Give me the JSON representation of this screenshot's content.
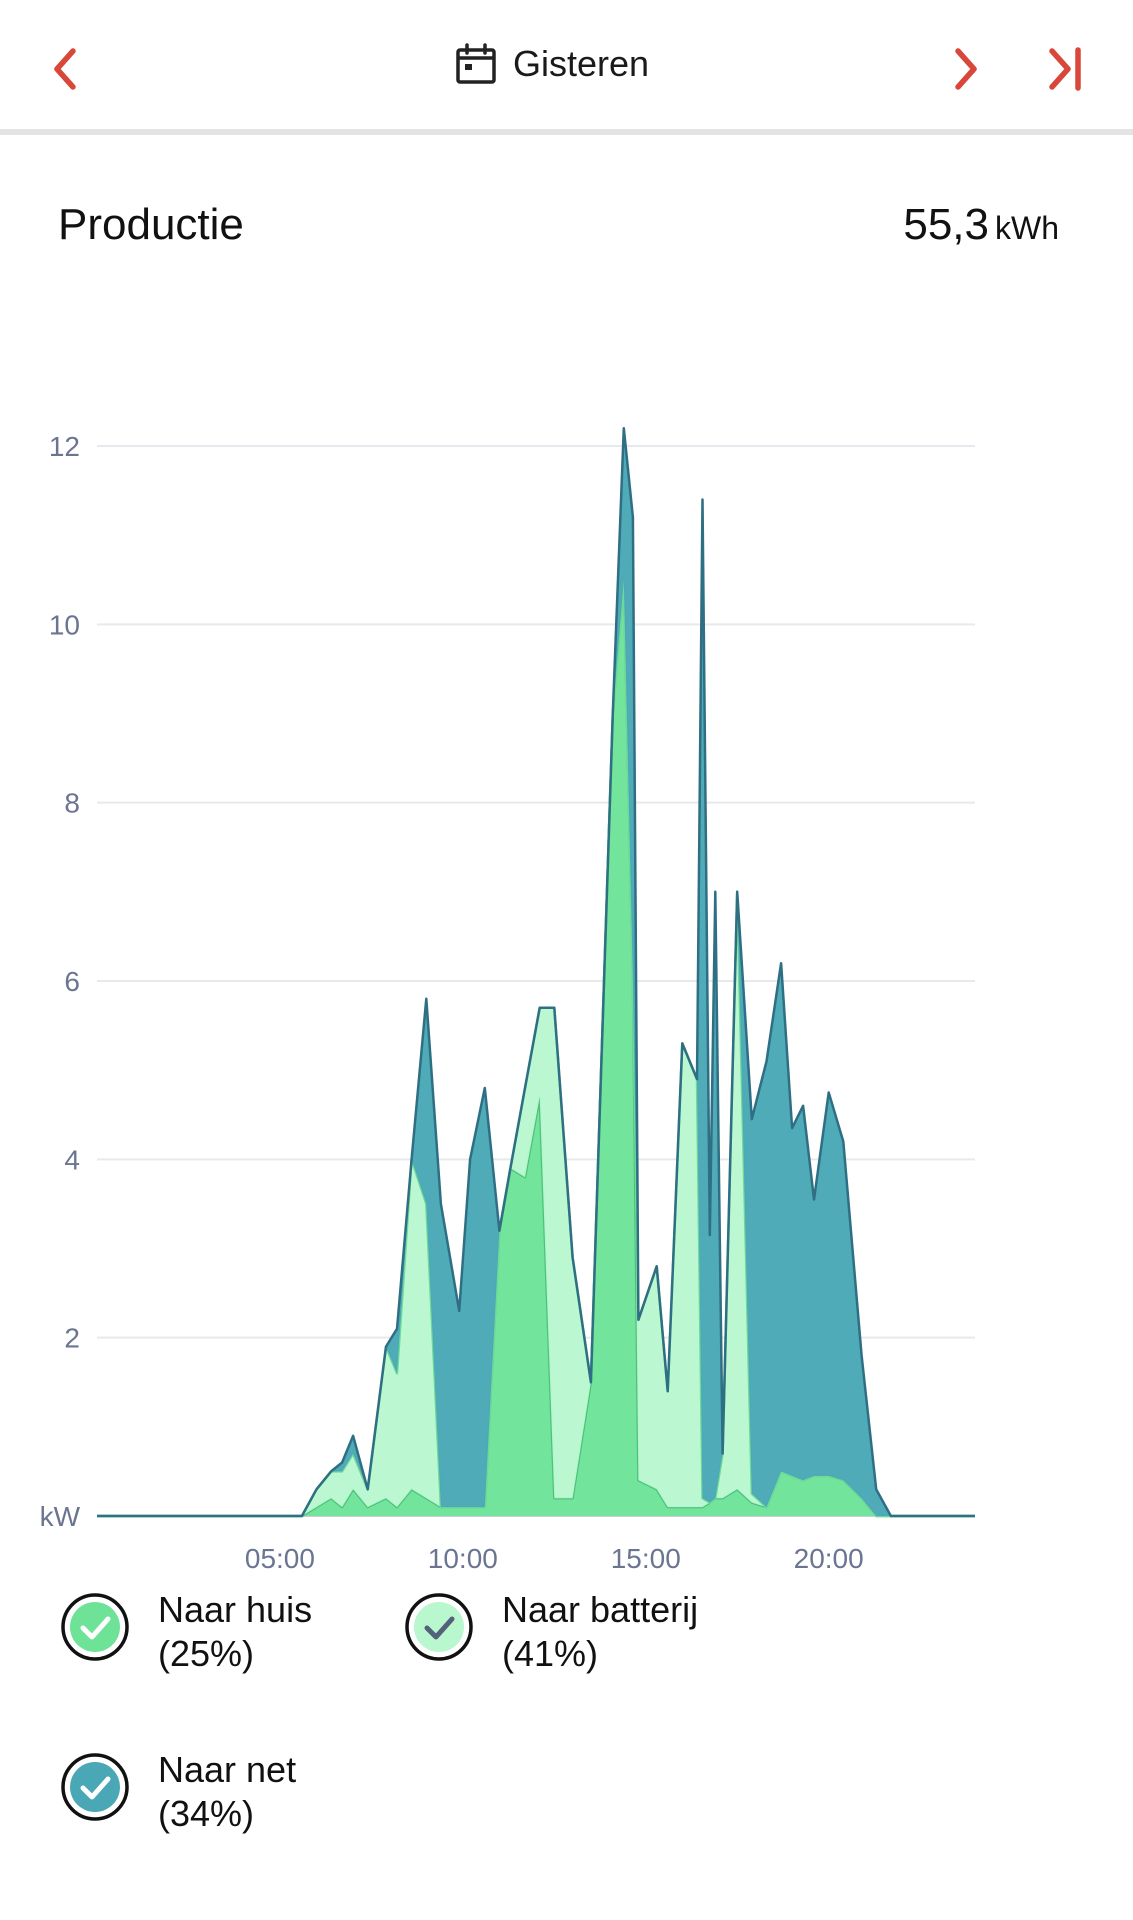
{
  "header": {
    "date_label": "Gisteren",
    "accent": "#d9473b"
  },
  "summary": {
    "title": "Productie",
    "total_value": "55,3",
    "total_unit": "kWh"
  },
  "legend": [
    {
      "label": "Naar huis",
      "pct": "(25%)",
      "color": "#6ee398",
      "checked": true
    },
    {
      "label": "Naar batterij",
      "pct": "(41%)",
      "color": "#b9f7cf",
      "checked": true
    },
    {
      "label": "Naar net",
      "pct": "(34%)",
      "color": "#4aa8b6",
      "checked": true
    }
  ],
  "chart_data": {
    "type": "area",
    "stacked": true,
    "ylabel": "kW",
    "ylim": [
      0,
      12
    ],
    "yticks": [
      2,
      4,
      6,
      8,
      10,
      12
    ],
    "xlim": [
      0,
      24
    ],
    "xticks": [
      5,
      10,
      15,
      20
    ],
    "xtick_labels": [
      "05:00",
      "10:00",
      "15:00",
      "20:00"
    ],
    "grid": true,
    "x": [
      0,
      5.6,
      6.0,
      6.4,
      6.7,
      7.0,
      7.4,
      7.9,
      8.2,
      8.6,
      9.0,
      9.4,
      9.9,
      10.2,
      10.6,
      11.0,
      11.3,
      11.7,
      12.1,
      12.5,
      13.0,
      13.5,
      14.1,
      14.4,
      14.65,
      14.8,
      15.3,
      15.6,
      16.0,
      16.4,
      16.55,
      16.75,
      16.9,
      17.1,
      17.5,
      17.9,
      18.3,
      18.7,
      19.0,
      19.3,
      19.6,
      20.0,
      20.4,
      20.9,
      21.3,
      21.7,
      24.0
    ],
    "series": [
      {
        "name": "Naar huis",
        "color": "#6ee398",
        "stroke": "#4cc37a",
        "values": [
          0,
          0,
          0.1,
          0.2,
          0.1,
          0.3,
          0.1,
          0.2,
          0.1,
          0.3,
          0.2,
          0.1,
          0.1,
          0.1,
          0.1,
          3.2,
          3.9,
          3.8,
          4.7,
          0.2,
          0.2,
          1.5,
          9.0,
          10.5,
          6.0,
          0.4,
          0.3,
          0.1,
          0.1,
          0.1,
          0.1,
          0.15,
          0.2,
          0.2,
          0.3,
          0.15,
          0.1,
          0.5,
          0.45,
          0.4,
          0.45,
          0.45,
          0.4,
          0.2,
          0,
          0,
          0
        ]
      },
      {
        "name": "Naar batterij",
        "color": "#b9f7cf",
        "stroke": "#6fd99a",
        "values": [
          0,
          0,
          0.2,
          0.3,
          0.4,
          0.4,
          0.2,
          1.7,
          1.5,
          3.7,
          3.3,
          0,
          0,
          0,
          0,
          0,
          0,
          1.0,
          1.0,
          5.5,
          2.7,
          0,
          0,
          0,
          0,
          1.8,
          2.5,
          1.3,
          5.2,
          4.8,
          0.1,
          0,
          0,
          0.5,
          6.7,
          0.1,
          0,
          0,
          0,
          0,
          0,
          0,
          0,
          0,
          0,
          0,
          0
        ]
      },
      {
        "name": "Naar net",
        "color": "#4aa8b6",
        "stroke": "#2f6f83",
        "values": [
          0,
          0,
          0,
          0,
          0.1,
          0.2,
          0,
          0,
          0.5,
          0,
          2.3,
          3.4,
          2.2,
          3.9,
          4.7,
          0,
          0,
          0,
          0,
          0,
          0,
          0,
          0,
          1.7,
          5.2,
          0,
          0,
          0,
          0,
          0,
          11.2,
          3.0,
          6.8,
          0,
          0,
          4.2,
          5.0,
          5.7,
          3.9,
          4.2,
          3.1,
          4.3,
          3.8,
          1.6,
          0.3,
          0,
          0
        ]
      }
    ]
  }
}
